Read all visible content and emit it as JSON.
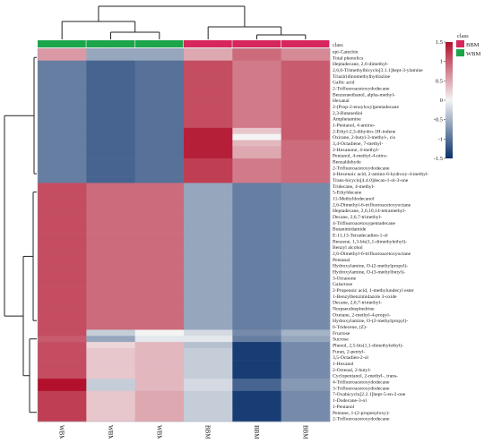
{
  "chart_data": {
    "type": "heatmap",
    "title": "",
    "columns": [
      "WBM-3",
      "WBM-1",
      "WBM-2",
      "BBM-3",
      "BBM-1",
      "BBM-2"
    ],
    "column_classes": [
      "WBM",
      "WBM",
      "WBM",
      "BBM",
      "BBM",
      "BBM"
    ],
    "rows": [
      "epi-Catechin",
      "Total phenolics",
      "Heptadecane, 2,6-dimethyl-",
      "2,6,6-Trimethylbicyclo[3.1.1]hept-3-ylamine",
      "Triaziridinomethylhydrazine",
      "Gallic acid",
      "2-Trifluoroacetoxydodecane",
      "Benzeneethanol, alpha-methyl-",
      "Hexanal",
      "2-(Prop-2-enoyloxy)pentadecane",
      "2,3-Butanediol",
      "Amphetamine",
      "1-Pentanol, 4-amino-",
      "2-Ethyl-2,3-dihydro-1H-indene",
      "Oxirane, 2-butyl-3-methyl-, cis",
      "3,4-Octadiene, 7-methyl-",
      "2-Hexanone, 4-methyl-",
      "Pentanol, 4-methyl-4-nitro-",
      "Benzaldehyde",
      "2-Trifluoroacetoxydodecane",
      "4-Hexenoic acid, 2-amino-6-hydroxy-4-methyl-",
      "Trans-bicyclo[4.4.0]decan-1-ol-3-one",
      "Tridecane, 4-methyl-",
      "5-Ethyldecane",
      "11-Methyldodecanol",
      "2,6-Dimethyl-6-trifluoroacetoxyoctane",
      "Heptadecane, 2,6,10,14-tetramethyl-",
      "Decane, 2,6,7-trimethyl-",
      "4-Trifluoroacetoxypentadecane",
      "Butanimidamide",
      "E-11,13-Tetradecadien-1-ol",
      "Benzene, 1,3-bis(1,1-dimethylethyl)-",
      "Benzyl alcohol",
      "2,6-Dimethyl-6-trifluoroacetoxyoctane",
      "Pentanal",
      "Hydroxylamine, O-(2-methylpropyl)-",
      "Hydroxylamine, O-(3-methylbutyl)-",
      "3-Octanone",
      "Galactose",
      "2-Propenoic acid, 1-methylundecyl ester",
      "1-Benzylbenzimidazole 3-oxide",
      "Decane, 2,6,7-trimethyl-",
      "Norpseudoephedrine",
      "Oxetane, 2-methyl-4-propyl-",
      "Hydroxylamine, O-(2-methylpropyl)-",
      "6-Tridecene, (Z)-",
      "Fructose",
      "Sucrose",
      "Phenol, 2,5-bis(1,1-dimethylethyl)-",
      "Furan, 2-pentyl-",
      "3,5-Octadien-2-ol",
      "1-Hexanol",
      "2-Octenal, 2-butyl-",
      "Cyclopentanol, 2-methyl-, trans-",
      "4-Trifluoroacetoxydodecane",
      "3-Trifluoroacetoxydodecane",
      "7-Oxabicyclo[2.2.1]hept-5-en-2-one",
      "1-Dodecane-3-ol",
      "1-Pentanol",
      "Pentane, 1-(2-propenyloxy)-",
      "2-Trifluoroacetoxydodecane"
    ],
    "values": [
      [
        0.6,
        -0.6,
        -0.6,
        0.5,
        0.9,
        0.7
      ],
      [
        0.6,
        -0.6,
        -0.6,
        0.5,
        0.9,
        0.7
      ],
      [
        -0.9,
        -1.1,
        -1.0,
        1.1,
        0.8,
        1.0
      ],
      [
        -0.9,
        -1.1,
        -1.0,
        1.1,
        0.8,
        1.0
      ],
      [
        -0.9,
        -1.1,
        -1.0,
        1.1,
        0.8,
        1.0
      ],
      [
        -0.9,
        -1.1,
        -1.0,
        1.1,
        0.8,
        1.0
      ],
      [
        -0.9,
        -1.1,
        -1.0,
        1.1,
        0.8,
        1.0
      ],
      [
        -0.9,
        -1.1,
        -1.0,
        1.1,
        0.8,
        1.0
      ],
      [
        -0.9,
        -1.1,
        -1.0,
        1.1,
        0.8,
        1.0
      ],
      [
        -0.9,
        -1.1,
        -1.0,
        1.1,
        0.8,
        1.0
      ],
      [
        -0.9,
        -1.1,
        -1.0,
        1.1,
        0.8,
        1.0
      ],
      [
        -0.9,
        -1.1,
        -1.0,
        1.1,
        0.8,
        1.0
      ],
      [
        -0.9,
        -1.1,
        -1.0,
        1.1,
        0.8,
        1.0
      ],
      [
        -0.9,
        -1.1,
        -1.0,
        1.4,
        0.3,
        1.0
      ],
      [
        -0.9,
        -1.1,
        -1.0,
        1.4,
        0.0,
        1.0
      ],
      [
        -0.9,
        -1.1,
        -1.0,
        1.4,
        0.4,
        0.9
      ],
      [
        -0.9,
        -1.1,
        -1.0,
        1.4,
        0.5,
        0.9
      ],
      [
        -0.9,
        -1.1,
        -1.0,
        1.4,
        0.5,
        0.9
      ],
      [
        -0.9,
        -1.1,
        -1.0,
        1.2,
        0.8,
        0.9
      ],
      [
        -0.9,
        -1.1,
        -1.0,
        1.2,
        0.8,
        0.9
      ],
      [
        -0.9,
        -1.1,
        -1.0,
        1.2,
        0.8,
        0.9
      ],
      [
        -0.9,
        -1.1,
        -1.0,
        1.2,
        0.8,
        0.9
      ],
      [
        1.1,
        0.9,
        0.9,
        -0.6,
        -0.9,
        -0.8
      ],
      [
        1.1,
        0.9,
        0.9,
        -0.6,
        -0.9,
        -0.8
      ],
      [
        1.1,
        0.9,
        0.9,
        -0.6,
        -0.9,
        -0.8
      ],
      [
        1.1,
        0.9,
        0.9,
        -0.6,
        -0.9,
        -0.8
      ],
      [
        1.1,
        0.9,
        0.9,
        -0.6,
        -0.9,
        -0.8
      ],
      [
        1.1,
        0.9,
        0.9,
        -0.6,
        -0.9,
        -0.8
      ],
      [
        1.1,
        0.9,
        0.9,
        -0.6,
        -0.9,
        -0.8
      ],
      [
        1.1,
        0.9,
        0.9,
        -0.6,
        -0.9,
        -0.8
      ],
      [
        1.1,
        0.9,
        0.9,
        -0.6,
        -0.9,
        -0.8
      ],
      [
        1.1,
        0.9,
        0.9,
        -0.6,
        -0.9,
        -0.8
      ],
      [
        1.1,
        0.9,
        0.9,
        -0.6,
        -0.9,
        -0.8
      ],
      [
        1.1,
        0.9,
        0.9,
        -0.6,
        -0.9,
        -0.8
      ],
      [
        1.1,
        0.9,
        0.9,
        -0.6,
        -0.9,
        -0.8
      ],
      [
        1.1,
        0.9,
        0.9,
        -0.6,
        -0.9,
        -0.8
      ],
      [
        1.1,
        0.9,
        0.9,
        -0.6,
        -0.9,
        -0.8
      ],
      [
        1.1,
        0.9,
        0.9,
        -0.6,
        -0.9,
        -0.8
      ],
      [
        1.1,
        0.9,
        0.9,
        -0.6,
        -0.9,
        -0.8
      ],
      [
        1.1,
        0.9,
        0.9,
        -0.6,
        -0.9,
        -0.8
      ],
      [
        1.1,
        0.9,
        0.9,
        -0.6,
        -0.9,
        -0.8
      ],
      [
        1.1,
        0.9,
        0.9,
        -0.6,
        -0.9,
        -0.8
      ],
      [
        1.1,
        0.9,
        0.9,
        -0.6,
        -0.9,
        -0.8
      ],
      [
        1.1,
        0.9,
        0.9,
        -0.6,
        -0.9,
        -0.8
      ],
      [
        1.1,
        0.9,
        0.9,
        -0.6,
        -0.9,
        -0.8
      ],
      [
        1.1,
        0.9,
        0.9,
        -0.6,
        -0.9,
        -0.8
      ],
      [
        1.1,
        -0.3,
        0.0,
        -0.2,
        -0.8,
        -0.5
      ],
      [
        1.0,
        -0.6,
        -0.1,
        -0.1,
        -0.9,
        -0.6
      ],
      [
        1.1,
        0.2,
        0.4,
        -0.4,
        -1.4,
        -0.8
      ],
      [
        1.1,
        0.3,
        0.4,
        -0.3,
        -1.4,
        -0.8
      ],
      [
        1.1,
        0.3,
        0.4,
        -0.3,
        -1.4,
        -0.8
      ],
      [
        1.1,
        0.3,
        0.4,
        -0.3,
        -1.4,
        -0.8
      ],
      [
        1.1,
        0.3,
        0.4,
        -0.3,
        -1.4,
        -0.8
      ],
      [
        1.1,
        0.3,
        0.4,
        -0.3,
        -1.4,
        -0.8
      ],
      [
        1.5,
        -0.3,
        0.4,
        -0.2,
        -1.1,
        -0.7
      ],
      [
        1.5,
        -0.3,
        0.4,
        -0.2,
        -1.1,
        -0.7
      ],
      [
        1.2,
        0.3,
        0.5,
        -0.3,
        -1.4,
        -0.8
      ],
      [
        1.2,
        0.3,
        0.5,
        -0.3,
        -1.4,
        -0.8
      ],
      [
        1.2,
        0.3,
        0.5,
        -0.3,
        -1.4,
        -0.8
      ],
      [
        1.2,
        0.3,
        0.5,
        -0.3,
        -1.4,
        -0.8
      ],
      [
        1.2,
        0.3,
        0.5,
        -0.3,
        -1.4,
        -0.8
      ]
    ],
    "class_label": "class",
    "legend": {
      "title": "class",
      "entries": [
        {
          "label": "BBM",
          "color": "#d6265b"
        },
        {
          "label": "WBM",
          "color": "#1ca54a"
        }
      ]
    },
    "colorbar": {
      "ticks": [
        1.5,
        1,
        0.5,
        0,
        -0.5,
        -1,
        -1.5
      ],
      "range": [
        -1.5,
        1.5
      ]
    },
    "colors": {
      "high": "#b2102b",
      "mid": "#f4f4f4",
      "low": "#08306b",
      "BBM": "#d6265b",
      "WBM": "#1ca54a"
    },
    "dendrogram": {
      "columns": true,
      "rows": true
    }
  }
}
